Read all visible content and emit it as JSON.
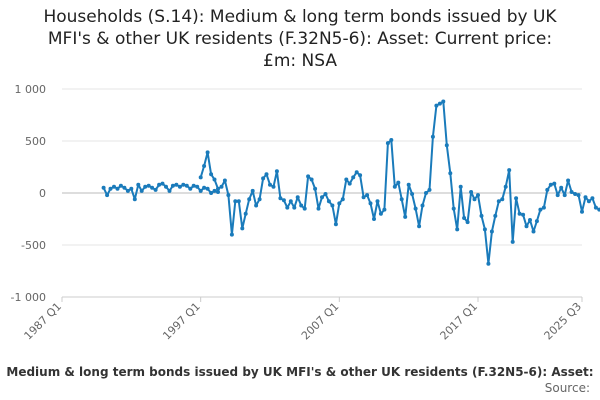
{
  "chart_data": {
    "type": "line",
    "title_lines": [
      "Households (S.14): Medium & long term bonds issued by UK",
      "MFI's & other UK residents (F.32N5-6): Asset: Current price:",
      "£m: NSA"
    ],
    "legend_label": "Medium & long term bonds issued by UK MFI's & other UK residents (F.32N5-6): Asset:",
    "source_label": "Source:",
    "line_color": "#1a7bbb",
    "ylim": [
      -1000,
      1000
    ],
    "y_ticks": [
      1000,
      500,
      0,
      -500,
      -1000
    ],
    "y_tick_labels": [
      "1 000",
      "500",
      "0",
      "-500",
      "-1 000"
    ],
    "x_ticks": [
      1987.0,
      1997.0,
      2007.0,
      2017.0,
      2024.5
    ],
    "x_tick_labels": [
      "1987 Q1",
      "1997 Q1",
      "2007 Q1",
      "2017 Q1",
      "2025 Q3"
    ],
    "series": [
      {
        "segments": [
          {
            "start_year": 1990.0,
            "values": [
              50,
              -20,
              40,
              60,
              40,
              70,
              50,
              20,
              40,
              -60,
              80,
              20,
              60,
              70,
              50,
              30,
              80,
              90,
              60,
              20,
              70,
              80,
              60,
              80,
              70,
              40,
              70,
              60,
              20,
              50,
              40,
              0,
              20,
              10
            ]
          },
          {
            "start_year": 1997.0,
            "values": [
              150,
              260,
              390,
              180,
              130,
              40,
              60,
              120,
              -20,
              -400,
              -80,
              -80,
              -340,
              -200,
              -60,
              20,
              -120,
              -60,
              140,
              180,
              80,
              60,
              210,
              -50,
              -70,
              -140,
              -80,
              -140,
              -40,
              -120,
              -150,
              160,
              130,
              40,
              -150,
              -40,
              -10,
              -80,
              -120,
              -300,
              -100,
              -60,
              130,
              90,
              150,
              200,
              170,
              -40,
              -20,
              -100,
              -250,
              -80,
              -200,
              -160,
              480,
              510,
              60,
              100,
              -60,
              -230,
              80,
              -10,
              -150,
              -320,
              -120,
              0,
              30,
              540,
              840,
              860,
              880,
              460,
              190,
              -150,
              -350,
              60,
              -240,
              -280,
              10,
              -60,
              -20,
              -220,
              -350,
              -680,
              -370,
              -220,
              -80,
              -60,
              60,
              220,
              -470,
              -50,
              -200,
              -210,
              -320,
              -260,
              -370,
              -270,
              -160,
              -140,
              30,
              80,
              90,
              -20,
              50,
              -20,
              120,
              10,
              -10,
              -20,
              -180,
              -40,
              -80,
              -50,
              -140,
              -160,
              -130,
              -180,
              40,
              20,
              -40,
              20,
              80,
              0,
              -20,
              70,
              0,
              20,
              30,
              10
            ]
          }
        ]
      }
    ]
  }
}
